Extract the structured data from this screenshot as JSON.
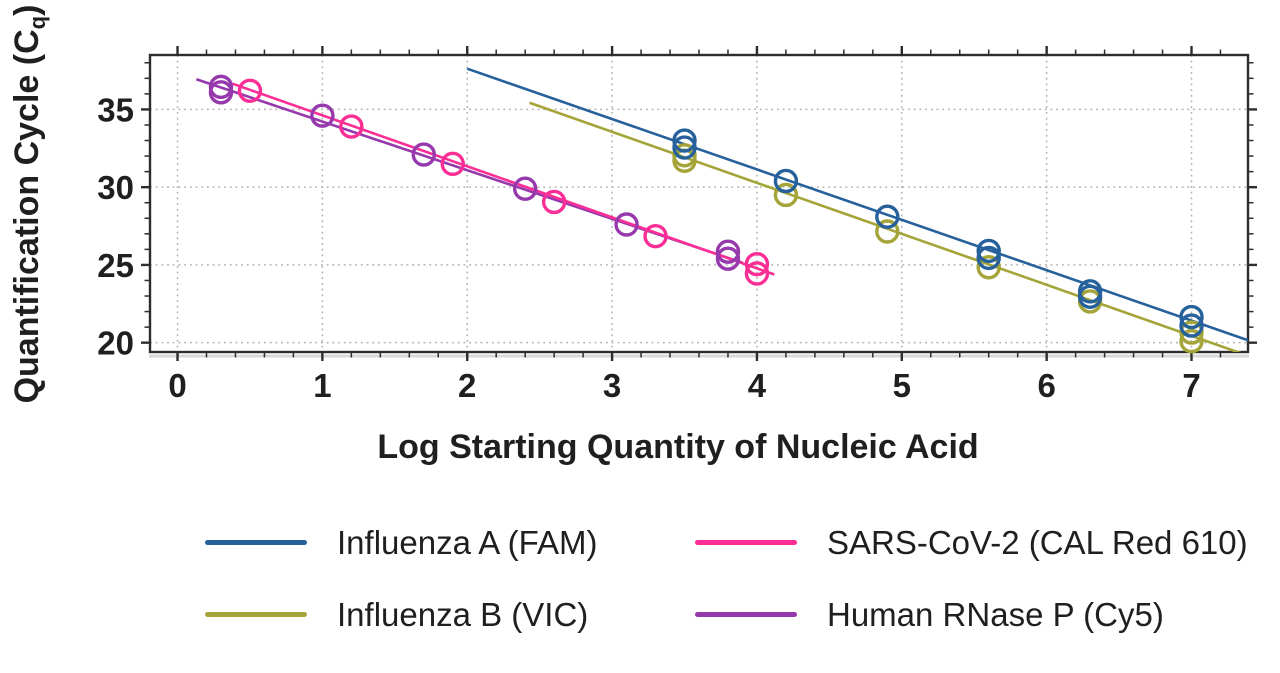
{
  "figure": {
    "background": "#ffffff",
    "text_color": "#1f1f1f",
    "axis_color": "#2d2d2d",
    "grid_color": "#b0b0b0",
    "axis_shadow_color": "#d8d8d8"
  },
  "chart_data": {
    "type": "scatter",
    "title": "",
    "xlabel": "Log Starting Quantity of Nucleic Acid",
    "ylabel": "Quantification Cycle (Cq)",
    "ylabel_parts": {
      "main": "Quantification Cycle (C",
      "sub": "q",
      "end": ")"
    },
    "xlim": [
      -0.19,
      7.39
    ],
    "ylim": [
      19.4,
      38.5
    ],
    "x_major_ticks": [
      0,
      1,
      2,
      3,
      4,
      5,
      6,
      7
    ],
    "x_tick_labels": [
      "0",
      "1",
      "2",
      "3",
      "4",
      "5",
      "6",
      "7"
    ],
    "x_minor_step": 0.2,
    "y_major_ticks": [
      20,
      25,
      30,
      35
    ],
    "y_tick_labels": [
      "20",
      "25",
      "30",
      "35"
    ],
    "y_minor_step": 1,
    "grid": "dotted gridlines at major ticks, both axes",
    "legend_position": "bottom",
    "marker": "open-circle",
    "series": [
      {
        "name": "Influenza A (FAM)",
        "key": "influenza-a",
        "color": "#26619c",
        "points": [
          [
            3.5,
            33.0
          ],
          [
            3.5,
            32.55
          ],
          [
            4.2,
            30.4
          ],
          [
            4.9,
            28.1
          ],
          [
            5.6,
            25.9
          ],
          [
            5.6,
            25.45
          ],
          [
            6.3,
            23.3
          ],
          [
            6.3,
            22.95
          ],
          [
            7.0,
            21.65
          ],
          [
            7.0,
            21.1
          ]
        ],
        "trendline": {
          "slope": -3.24,
          "intercept": 44.1,
          "x_start": 2.0,
          "x_end": 7.39
        }
      },
      {
        "name": "SARS-CoV-2 (CAL Red 610)",
        "key": "sars-cov-2",
        "color": "#fb2e96",
        "points": [
          [
            0.5,
            36.2
          ],
          [
            1.2,
            33.9
          ],
          [
            1.9,
            31.5
          ],
          [
            2.6,
            29.05
          ],
          [
            3.3,
            26.85
          ],
          [
            4.0,
            25.05
          ],
          [
            4.0,
            24.45
          ]
        ],
        "trendline": {
          "slope": -3.28,
          "intercept": 37.9,
          "x_start": 0.38,
          "x_end": 4.12
        }
      },
      {
        "name": "Influenza B (VIC)",
        "key": "influenza-b",
        "color": "#a4a438",
        "points": [
          [
            3.5,
            32.05
          ],
          [
            3.5,
            31.7
          ],
          [
            4.2,
            29.5
          ],
          [
            4.9,
            27.15
          ],
          [
            5.6,
            24.85
          ],
          [
            6.3,
            22.65
          ],
          [
            7.0,
            20.65
          ],
          [
            7.0,
            20.1
          ]
        ],
        "trendline": {
          "slope": -3.28,
          "intercept": 43.4,
          "x_start": 2.43,
          "x_end": 7.39
        }
      },
      {
        "name": "Human RNase P (Cy5)",
        "key": "rnase-p",
        "color": "#9639ad",
        "points": [
          [
            0.3,
            36.45
          ],
          [
            0.3,
            36.1
          ],
          [
            1.0,
            34.6
          ],
          [
            1.7,
            32.1
          ],
          [
            2.4,
            29.9
          ],
          [
            3.1,
            27.6
          ],
          [
            3.8,
            25.85
          ],
          [
            3.8,
            25.4
          ]
        ],
        "trendline": {
          "slope": -3.13,
          "intercept": 37.35,
          "x_start": 0.13,
          "x_end": 3.9
        }
      }
    ]
  },
  "legend": {
    "items": [
      {
        "label": "Influenza A (FAM)",
        "color": "#26619c"
      },
      {
        "label": "SARS-CoV-2 (CAL Red 610)",
        "color": "#fb2e96"
      },
      {
        "label": "Influenza B (VIC)",
        "color": "#a4a438"
      },
      {
        "label": "Human RNase P (Cy5)",
        "color": "#9639ad"
      }
    ]
  }
}
